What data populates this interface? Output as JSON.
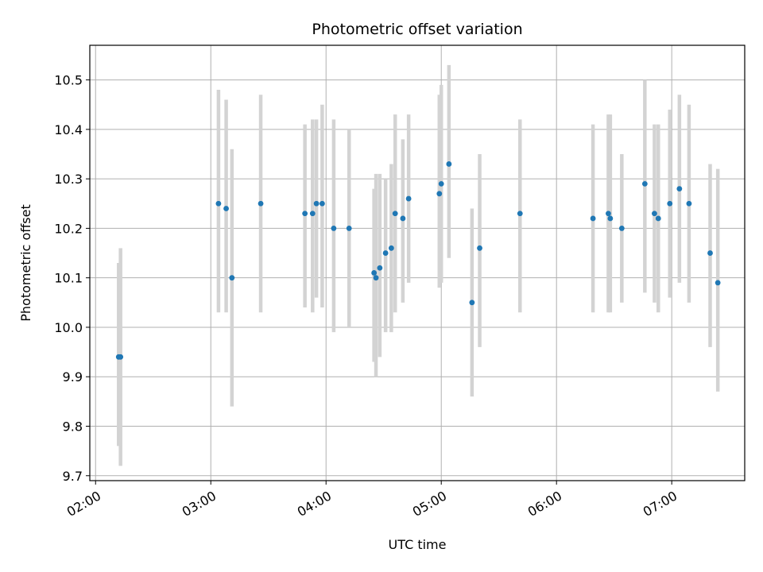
{
  "chart_data": {
    "type": "scatter",
    "title": "Photometric offset variation",
    "xlabel": "UTC time",
    "ylabel": "Photometric offset",
    "x_axis_kind": "time",
    "xlim": [
      "01:57",
      "07:38"
    ],
    "ylim": [
      9.69,
      10.57
    ],
    "x_ticks": [
      "02:00",
      "03:00",
      "04:00",
      "05:00",
      "06:00",
      "07:00"
    ],
    "y_ticks": [
      9.7,
      9.8,
      9.9,
      10.0,
      10.1,
      10.2,
      10.3,
      10.4,
      10.5
    ],
    "grid": true,
    "marker_color": "#1f77b4",
    "errorbar_color": "#d3d3d3",
    "points": [
      {
        "t": "02:12",
        "y": 9.94,
        "low": 9.76,
        "high": 10.13
      },
      {
        "t": "02:13",
        "y": 9.94,
        "low": 9.72,
        "high": 10.16
      },
      {
        "t": "03:04",
        "y": 10.25,
        "low": 10.03,
        "high": 10.48
      },
      {
        "t": "03:08",
        "y": 10.24,
        "low": 10.03,
        "high": 10.46
      },
      {
        "t": "03:11",
        "y": 10.1,
        "low": 9.84,
        "high": 10.36
      },
      {
        "t": "03:26",
        "y": 10.25,
        "low": 10.03,
        "high": 10.47
      },
      {
        "t": "03:49",
        "y": 10.23,
        "low": 10.04,
        "high": 10.41
      },
      {
        "t": "03:53",
        "y": 10.23,
        "low": 10.03,
        "high": 10.42
      },
      {
        "t": "03:55",
        "y": 10.25,
        "low": 10.06,
        "high": 10.42
      },
      {
        "t": "03:58",
        "y": 10.25,
        "low": 10.04,
        "high": 10.45
      },
      {
        "t": "04:04",
        "y": 10.2,
        "low": 9.99,
        "high": 10.42
      },
      {
        "t": "04:12",
        "y": 10.2,
        "low": 10.0,
        "high": 10.4
      },
      {
        "t": "04:25",
        "y": 10.11,
        "low": 9.93,
        "high": 10.28
      },
      {
        "t": "04:26",
        "y": 10.1,
        "low": 9.9,
        "high": 10.31
      },
      {
        "t": "04:28",
        "y": 10.12,
        "low": 9.94,
        "high": 10.31
      },
      {
        "t": "04:31",
        "y": 10.15,
        "low": 9.99,
        "high": 10.3
      },
      {
        "t": "04:34",
        "y": 10.16,
        "low": 9.99,
        "high": 10.33
      },
      {
        "t": "04:36",
        "y": 10.23,
        "low": 10.03,
        "high": 10.43
      },
      {
        "t": "04:40",
        "y": 10.22,
        "low": 10.05,
        "high": 10.38
      },
      {
        "t": "04:43",
        "y": 10.26,
        "low": 10.09,
        "high": 10.43
      },
      {
        "t": "04:59",
        "y": 10.27,
        "low": 10.08,
        "high": 10.47
      },
      {
        "t": "05:00",
        "y": 10.29,
        "low": 10.09,
        "high": 10.49
      },
      {
        "t": "05:04",
        "y": 10.33,
        "low": 10.14,
        "high": 10.53
      },
      {
        "t": "05:16",
        "y": 10.05,
        "low": 9.86,
        "high": 10.24
      },
      {
        "t": "05:20",
        "y": 10.16,
        "low": 9.96,
        "high": 10.35
      },
      {
        "t": "05:41",
        "y": 10.23,
        "low": 10.03,
        "high": 10.42
      },
      {
        "t": "06:19",
        "y": 10.22,
        "low": 10.03,
        "high": 10.41
      },
      {
        "t": "06:27",
        "y": 10.23,
        "low": 10.03,
        "high": 10.43
      },
      {
        "t": "06:28",
        "y": 10.22,
        "low": 10.03,
        "high": 10.43
      },
      {
        "t": "06:34",
        "y": 10.2,
        "low": 10.05,
        "high": 10.35
      },
      {
        "t": "06:46",
        "y": 10.29,
        "low": 10.07,
        "high": 10.5
      },
      {
        "t": "06:51",
        "y": 10.23,
        "low": 10.05,
        "high": 10.41
      },
      {
        "t": "06:53",
        "y": 10.22,
        "low": 10.03,
        "high": 10.41
      },
      {
        "t": "06:59",
        "y": 10.25,
        "low": 10.06,
        "high": 10.44
      },
      {
        "t": "07:04",
        "y": 10.28,
        "low": 10.09,
        "high": 10.47
      },
      {
        "t": "07:09",
        "y": 10.25,
        "low": 10.05,
        "high": 10.45
      },
      {
        "t": "07:20",
        "y": 10.15,
        "low": 9.96,
        "high": 10.33
      },
      {
        "t": "07:24",
        "y": 10.09,
        "low": 9.87,
        "high": 10.32
      }
    ]
  }
}
